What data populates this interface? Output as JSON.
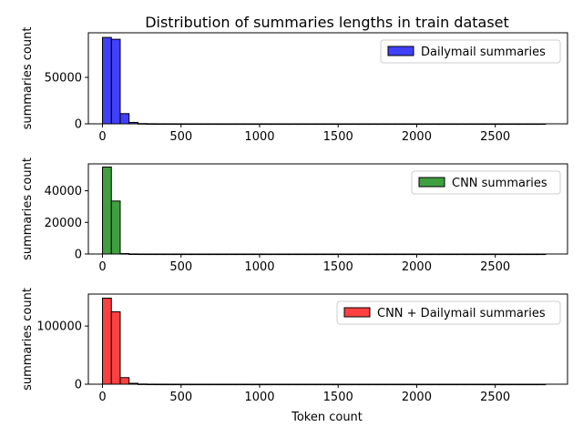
{
  "chart_data": [
    {
      "type": "bar",
      "title": "Distribution of summaries lengths in train dataset",
      "xlabel": "",
      "ylabel": "summaries count",
      "xlim": [
        -90,
        2960
      ],
      "ylim": [
        0,
        98000
      ],
      "xticks": [
        0,
        500,
        1000,
        1500,
        2000,
        2500
      ],
      "yticks": [
        0,
        50000
      ],
      "bin_edges_start": 0,
      "bin_width": 56.4,
      "bin_count": 50,
      "color": "#0000ff",
      "legend": {
        "label": "Dailymail summaries",
        "position": "top-right"
      },
      "values": [
        93000,
        91000,
        11000,
        1500,
        300,
        100,
        60,
        40,
        25,
        15,
        10,
        8,
        6,
        5,
        4,
        3,
        3,
        2,
        2,
        1,
        1,
        1,
        1,
        1,
        1,
        1,
        1,
        1,
        1,
        1,
        1,
        1,
        1,
        1,
        1,
        1,
        1,
        1,
        1,
        1,
        1,
        1,
        1,
        1,
        1,
        1,
        1,
        1,
        1,
        1
      ]
    },
    {
      "type": "bar",
      "title": "",
      "xlabel": "",
      "ylabel": "summaries count",
      "xlim": [
        -90,
        2960
      ],
      "ylim": [
        0,
        57000
      ],
      "xticks": [
        0,
        500,
        1000,
        1500,
        2000,
        2500
      ],
      "yticks": [
        0,
        20000,
        40000
      ],
      "bin_edges_start": 0,
      "bin_width": 56.4,
      "bin_count": 50,
      "color": "#008000",
      "legend": {
        "label": "CNN summaries",
        "position": "top-right"
      },
      "values": [
        55000,
        33500,
        300,
        50,
        20,
        10,
        5,
        3,
        2,
        1,
        1,
        1,
        1,
        1,
        1,
        1,
        1,
        1,
        1,
        1,
        1,
        1,
        1,
        1,
        1,
        1,
        1,
        1,
        1,
        1,
        1,
        1,
        1,
        1,
        1,
        1,
        1,
        1,
        1,
        1,
        1,
        1,
        1,
        1,
        1,
        1,
        1,
        1,
        1,
        1
      ]
    },
    {
      "type": "bar",
      "title": "",
      "xlabel": "Token count",
      "ylabel": "summaries count",
      "xlim": [
        -90,
        2960
      ],
      "ylim": [
        0,
        155000
      ],
      "xticks": [
        0,
        500,
        1000,
        1500,
        2000,
        2500
      ],
      "yticks": [
        0,
        100000
      ],
      "bin_edges_start": 0,
      "bin_width": 56.4,
      "bin_count": 50,
      "color": "#ff0000",
      "legend": {
        "label": "CNN + Dailymail summaries",
        "position": "top-right"
      },
      "values": [
        148000,
        124500,
        11300,
        1550,
        320,
        110,
        65,
        43,
        27,
        16,
        11,
        9,
        7,
        6,
        5,
        4,
        4,
        3,
        3,
        2,
        2,
        2,
        2,
        2,
        2,
        2,
        2,
        2,
        2,
        2,
        2,
        2,
        2,
        2,
        2,
        2,
        2,
        2,
        2,
        2,
        2,
        2,
        2,
        2,
        2,
        2,
        2,
        2,
        2,
        2
      ]
    }
  ]
}
